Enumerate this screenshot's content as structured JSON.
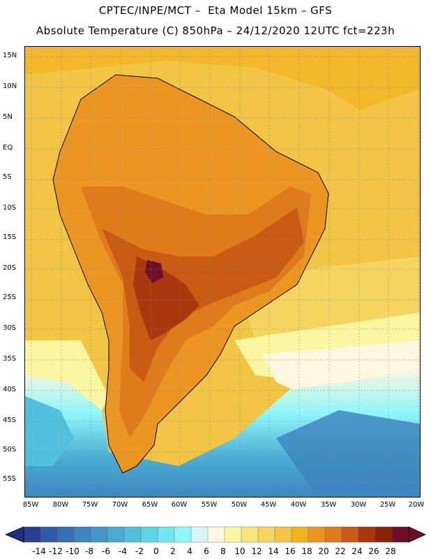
{
  "header": {
    "line1": "CPTEC/INPE/MCT –  Eta Model 15km – GFS",
    "line2": "Absolute Temperature (C) 850hPa – 24/12/2020 12UTC fct=223h"
  },
  "axes": {
    "lat_labels": [
      "15N",
      "10N",
      "5N",
      "EQ",
      "5S",
      "10S",
      "15S",
      "20S",
      "25S",
      "30S",
      "35S",
      "40S",
      "45S",
      "50S",
      "55S"
    ],
    "lon_labels": [
      "85W",
      "80W",
      "75W",
      "70W",
      "65W",
      "60W",
      "55W",
      "50W",
      "45W",
      "40W",
      "35W",
      "30W",
      "25W",
      "20W"
    ]
  },
  "colorbar": {
    "labels": [
      "-14",
      "-12",
      "-10",
      "-8",
      "-6",
      "-4",
      "-2",
      "0",
      "2",
      "4",
      "6",
      "8",
      "10",
      "12",
      "14",
      "16",
      "18",
      "20",
      "22",
      "24",
      "26",
      "28"
    ],
    "low_color": "#1c2f86",
    "high_color": "#6e0f2a",
    "colors": [
      "#2a3f93",
      "#2f5aa8",
      "#3570b3",
      "#3d86bf",
      "#4198c8",
      "#49abd2",
      "#50c0dc",
      "#5cd6e6",
      "#6ee8f2",
      "#8ff6fb",
      "#d8f5fa",
      "#fff6e0",
      "#fdf6a0",
      "#f9e57a",
      "#f6d460",
      "#f3c545",
      "#f2b21f",
      "#eb9620",
      "#e07a1a",
      "#c95a12",
      "#a9380c",
      "#8b2208",
      "#6e0f2a"
    ]
  }
}
